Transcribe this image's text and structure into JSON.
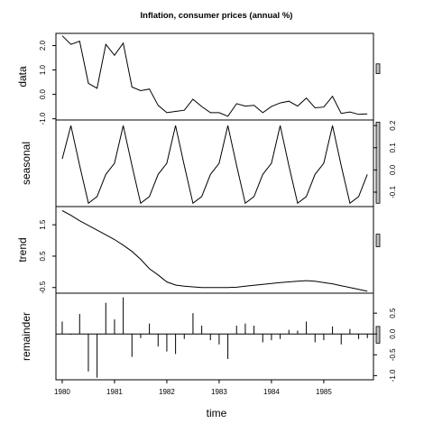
{
  "chart_data": {
    "type": "line",
    "title": "Inflation, consumer prices (annual %)",
    "xlabel": "time",
    "xlim": [
      1979.88,
      1985.95
    ],
    "x_ticks": [
      1980,
      1981,
      1982,
      1983,
      1984,
      1985
    ],
    "x_tick_labels": [
      "1980",
      "1981",
      "1982",
      "1983",
      "1984",
      "1985"
    ],
    "grid": false,
    "panels": [
      {
        "name": "data",
        "ylabel": "data",
        "kind": "line",
        "ylim": [
          -1.05,
          2.5
        ],
        "ticks": [
          -1.0,
          0.0,
          1.0,
          2.0
        ],
        "tick_labels": [
          "-1.0",
          "0.0",
          "1.0",
          "2.0"
        ],
        "tick_side": "left",
        "range_bar": [
          0.85,
          1.25
        ]
      },
      {
        "name": "seasonal",
        "ylabel": "seasonal",
        "kind": "line",
        "ylim": [
          -0.165,
          0.225
        ],
        "ticks": [
          -0.1,
          0.0,
          0.1,
          0.2
        ],
        "tick_labels": [
          "-0.1",
          "0.0",
          "0.1",
          "0.2"
        ],
        "tick_side": "right",
        "range_bar": [
          -0.15,
          0.215
        ]
      },
      {
        "name": "trend",
        "ylabel": "trend",
        "kind": "line",
        "ylim": [
          -0.68,
          2.08
        ],
        "ticks": [
          -0.5,
          0.5,
          1.5
        ],
        "tick_labels": [
          "-0.5",
          "0.5",
          "1.5"
        ],
        "tick_side": "left",
        "range_bar": [
          0.8,
          1.2
        ]
      },
      {
        "name": "remainder",
        "ylabel": "remainder",
        "kind": "spike",
        "ylim": [
          -1.1,
          0.98
        ],
        "ticks": [
          -1.0,
          -0.5,
          0.0,
          0.5
        ],
        "tick_labels": [
          "-1.0",
          "-0.5",
          "0.0",
          "0.5"
        ],
        "tick_side": "right",
        "range_bar": [
          -0.22,
          0.18
        ]
      }
    ],
    "x": [
      1980.0,
      1980.1667,
      1980.3333,
      1980.5,
      1980.6667,
      1980.8333,
      1981.0,
      1981.1667,
      1981.3333,
      1981.5,
      1981.6667,
      1981.8333,
      1982.0,
      1982.1667,
      1982.3333,
      1982.5,
      1982.6667,
      1982.8333,
      1983.0,
      1983.1667,
      1983.3333,
      1983.5,
      1983.6667,
      1983.8333,
      1984.0,
      1984.1667,
      1984.3333,
      1984.5,
      1984.6667,
      1984.8333,
      1985.0,
      1985.1667,
      1985.3333,
      1985.5,
      1985.6667,
      1985.8333
    ],
    "series": [
      {
        "name": "data",
        "values": [
          2.4,
          2.05,
          2.18,
          0.45,
          0.25,
          2.05,
          1.6,
          2.1,
          0.3,
          0.15,
          0.22,
          -0.45,
          -0.75,
          -0.7,
          -0.65,
          -0.2,
          -0.5,
          -0.75,
          -0.75,
          -0.9,
          -0.38,
          -0.48,
          -0.45,
          -0.75,
          -0.5,
          -0.35,
          -0.28,
          -0.48,
          -0.15,
          -0.55,
          -0.52,
          -0.08,
          -0.78,
          -0.72,
          -0.82,
          -0.8
        ]
      },
      {
        "name": "seasonal",
        "values": [
          0.05,
          0.2,
          0.02,
          -0.15,
          -0.12,
          -0.02,
          0.03,
          0.2,
          0.02,
          -0.15,
          -0.12,
          -0.02,
          0.03,
          0.2,
          0.02,
          -0.15,
          -0.12,
          -0.02,
          0.03,
          0.2,
          0.02,
          -0.15,
          -0.12,
          -0.02,
          0.03,
          0.2,
          0.02,
          -0.15,
          -0.12,
          -0.02,
          0.03,
          0.2,
          0.02,
          -0.15,
          -0.12,
          -0.02
        ]
      },
      {
        "name": "trend",
        "values": [
          1.95,
          1.8,
          1.63,
          1.48,
          1.33,
          1.18,
          1.03,
          0.85,
          0.65,
          0.4,
          0.1,
          -0.1,
          -0.32,
          -0.42,
          -0.46,
          -0.48,
          -0.5,
          -0.5,
          -0.5,
          -0.5,
          -0.49,
          -0.46,
          -0.43,
          -0.4,
          -0.37,
          -0.34,
          -0.32,
          -0.3,
          -0.28,
          -0.3,
          -0.34,
          -0.38,
          -0.44,
          -0.5,
          -0.56,
          -0.62
        ]
      },
      {
        "name": "remainder",
        "values": [
          0.3,
          -0.02,
          0.48,
          -0.9,
          -1.05,
          0.75,
          0.35,
          0.88,
          -0.55,
          -0.1,
          0.25,
          -0.3,
          -0.42,
          -0.48,
          -0.12,
          0.5,
          0.2,
          -0.15,
          -0.25,
          -0.6,
          0.2,
          0.25,
          0.2,
          -0.2,
          -0.15,
          -0.12,
          0.1,
          0.08,
          0.3,
          -0.2,
          -0.15,
          0.18,
          -0.25,
          0.12,
          -0.12,
          -0.1
        ]
      }
    ]
  }
}
